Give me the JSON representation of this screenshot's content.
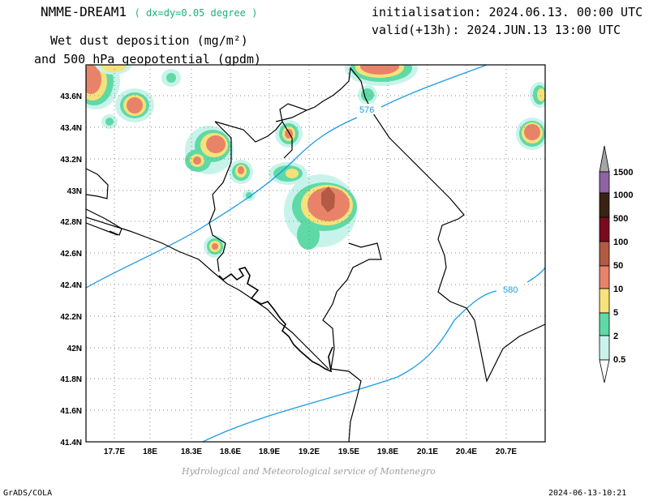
{
  "header": {
    "model_name": "NMME-DREAM1",
    "resolution": "( dx=dy=0.05 degree )",
    "title_line1": "Wet dust deposition (mg/m²)",
    "title_line2": "and 500 hPa geopotential (gpdm)",
    "initialisation": "initialisation: 2024.06.13. 00:00 UTC",
    "valid": "valid(+13h): 2024.JUN.13 13:00 UTC"
  },
  "footer": {
    "credit": "Hydrological and Meteorological service of Montenegro",
    "left": "GrADS/COLA",
    "right": "2024-06-13-10:21"
  },
  "map": {
    "x_ticks": [
      "17.7E",
      "18E",
      "18.3E",
      "18.6E",
      "18.9E",
      "19.2E",
      "19.5E",
      "19.8E",
      "20.1E",
      "20.4E",
      "20.7E"
    ],
    "y_ticks": [
      "43.6N",
      "43.4N",
      "43.2N",
      "43N",
      "42.8N",
      "42.6N",
      "42.4N",
      "42.2N",
      "42N",
      "41.8N",
      "41.6N",
      "41.4N"
    ],
    "x_range": [
      17.55,
      21.05
    ],
    "y_range": [
      41.4,
      43.75
    ],
    "contours": [
      {
        "value": "576",
        "color": "#1a9be6"
      },
      {
        "value": "580",
        "color": "#1a9be6"
      }
    ]
  },
  "colorbar": {
    "levels": [
      "1500",
      "1000",
      "500",
      "100",
      "50",
      "10",
      "5",
      "2",
      "0.5"
    ],
    "colors": [
      "#a5a5a5",
      "#8e63a3",
      "#3a2214",
      "#7a0b1e",
      "#b35a42",
      "#e8836a",
      "#f5e27a",
      "#5fd9a6",
      "#c8f3eb"
    ]
  }
}
